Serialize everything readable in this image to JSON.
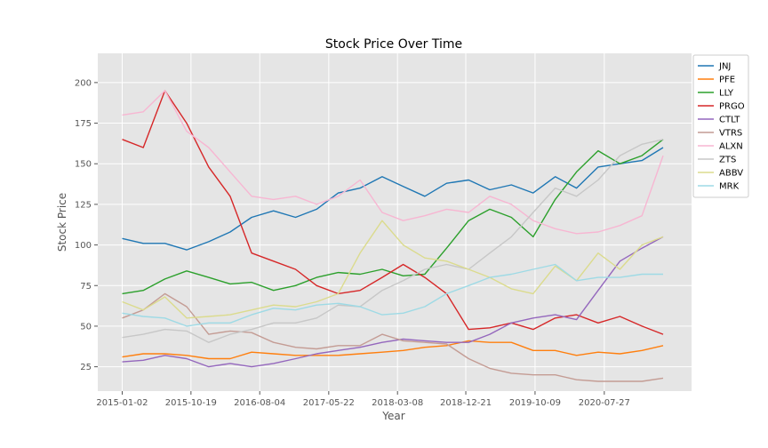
{
  "chart_data": {
    "type": "line",
    "title": "Stock Price Over Time",
    "xlabel": "Year",
    "ylabel": "Stock Price",
    "x_ticks": [
      "2015-01-02",
      "2015-10-19",
      "2016-08-04",
      "2017-05-22",
      "2018-03-08",
      "2018-12-21",
      "2019-10-09",
      "2020-07-27"
    ],
    "y_ticks": [
      25,
      50,
      75,
      100,
      125,
      150,
      175,
      200
    ],
    "x_range": [
      "2014-09-21",
      "2021-07-30"
    ],
    "ylim": [
      10,
      218
    ],
    "grid": true,
    "legend_position": "outside-top-right",
    "x_dates": [
      "2015-01-02",
      "2015-04-01",
      "2015-07-01",
      "2015-10-01",
      "2016-01-02",
      "2016-04-01",
      "2016-07-01",
      "2016-10-01",
      "2017-01-02",
      "2017-04-01",
      "2017-07-01",
      "2017-10-01",
      "2018-01-02",
      "2018-04-01",
      "2018-07-01",
      "2018-10-01",
      "2019-01-02",
      "2019-04-01",
      "2019-07-01",
      "2019-10-01",
      "2020-01-02",
      "2020-04-01",
      "2020-07-01",
      "2020-10-01",
      "2021-01-02",
      "2021-04-01"
    ],
    "series": [
      {
        "name": "JNJ",
        "color": "#1f77b4",
        "values": [
          104,
          101,
          101,
          97,
          102,
          108,
          117,
          121,
          117,
          122,
          132,
          135,
          142,
          136,
          130,
          138,
          140,
          134,
          137,
          132,
          142,
          135,
          148,
          150,
          152,
          160
        ]
      },
      {
        "name": "PFE",
        "color": "#ff7f0e",
        "values": [
          31,
          33,
          33,
          32,
          30,
          30,
          34,
          33,
          32,
          32,
          32,
          33,
          34,
          35,
          37,
          38,
          41,
          40,
          40,
          35,
          35,
          32,
          34,
          33,
          35,
          38
        ]
      },
      {
        "name": "LLY",
        "color": "#2ca02c",
        "values": [
          70,
          72,
          79,
          84,
          80,
          76,
          77,
          72,
          75,
          80,
          83,
          82,
          85,
          81,
          82,
          98,
          115,
          122,
          117,
          105,
          128,
          145,
          158,
          150,
          155,
          165
        ]
      },
      {
        "name": "PRGO",
        "color": "#d62728",
        "values": [
          165,
          160,
          195,
          175,
          148,
          130,
          95,
          90,
          85,
          75,
          70,
          72,
          80,
          88,
          80,
          70,
          48,
          49,
          52,
          48,
          55,
          57,
          52,
          56,
          50,
          45
        ]
      },
      {
        "name": "CTLT",
        "color": "#9467bd",
        "values": [
          28,
          29,
          32,
          30,
          25,
          27,
          25,
          27,
          30,
          33,
          35,
          37,
          40,
          42,
          41,
          40,
          40,
          45,
          52,
          55,
          57,
          54,
          72,
          90,
          98,
          105
        ]
      },
      {
        "name": "VTRS",
        "color": "#c49c94",
        "values": [
          55,
          60,
          70,
          62,
          45,
          47,
          46,
          40,
          37,
          36,
          38,
          38,
          45,
          41,
          40,
          39,
          30,
          24,
          21,
          20,
          20,
          17,
          16,
          16,
          16,
          18
        ]
      },
      {
        "name": "ALXN",
        "color": "#f7b6d2",
        "values": [
          180,
          182,
          195,
          170,
          160,
          145,
          130,
          128,
          130,
          125,
          130,
          140,
          120,
          115,
          118,
          122,
          120,
          130,
          125,
          115,
          110,
          107,
          108,
          112,
          118,
          155
        ]
      },
      {
        "name": "ZTS",
        "color": "#c7c7c7",
        "values": [
          43,
          45,
          48,
          47,
          40,
          45,
          48,
          52,
          52,
          55,
          63,
          62,
          72,
          78,
          85,
          88,
          85,
          95,
          105,
          120,
          135,
          130,
          140,
          155,
          162,
          165
        ]
      },
      {
        "name": "ABBV",
        "color": "#dbdb8d",
        "values": [
          65,
          60,
          68,
          55,
          56,
          57,
          60,
          63,
          62,
          65,
          70,
          95,
          115,
          100,
          92,
          90,
          85,
          80,
          73,
          70,
          87,
          78,
          95,
          85,
          100,
          105
        ]
      },
      {
        "name": "MRK",
        "color": "#9edae5",
        "values": [
          58,
          56,
          55,
          50,
          52,
          52,
          57,
          61,
          60,
          63,
          64,
          62,
          57,
          58,
          62,
          70,
          75,
          80,
          82,
          85,
          88,
          78,
          80,
          80,
          82,
          82
        ]
      }
    ]
  }
}
